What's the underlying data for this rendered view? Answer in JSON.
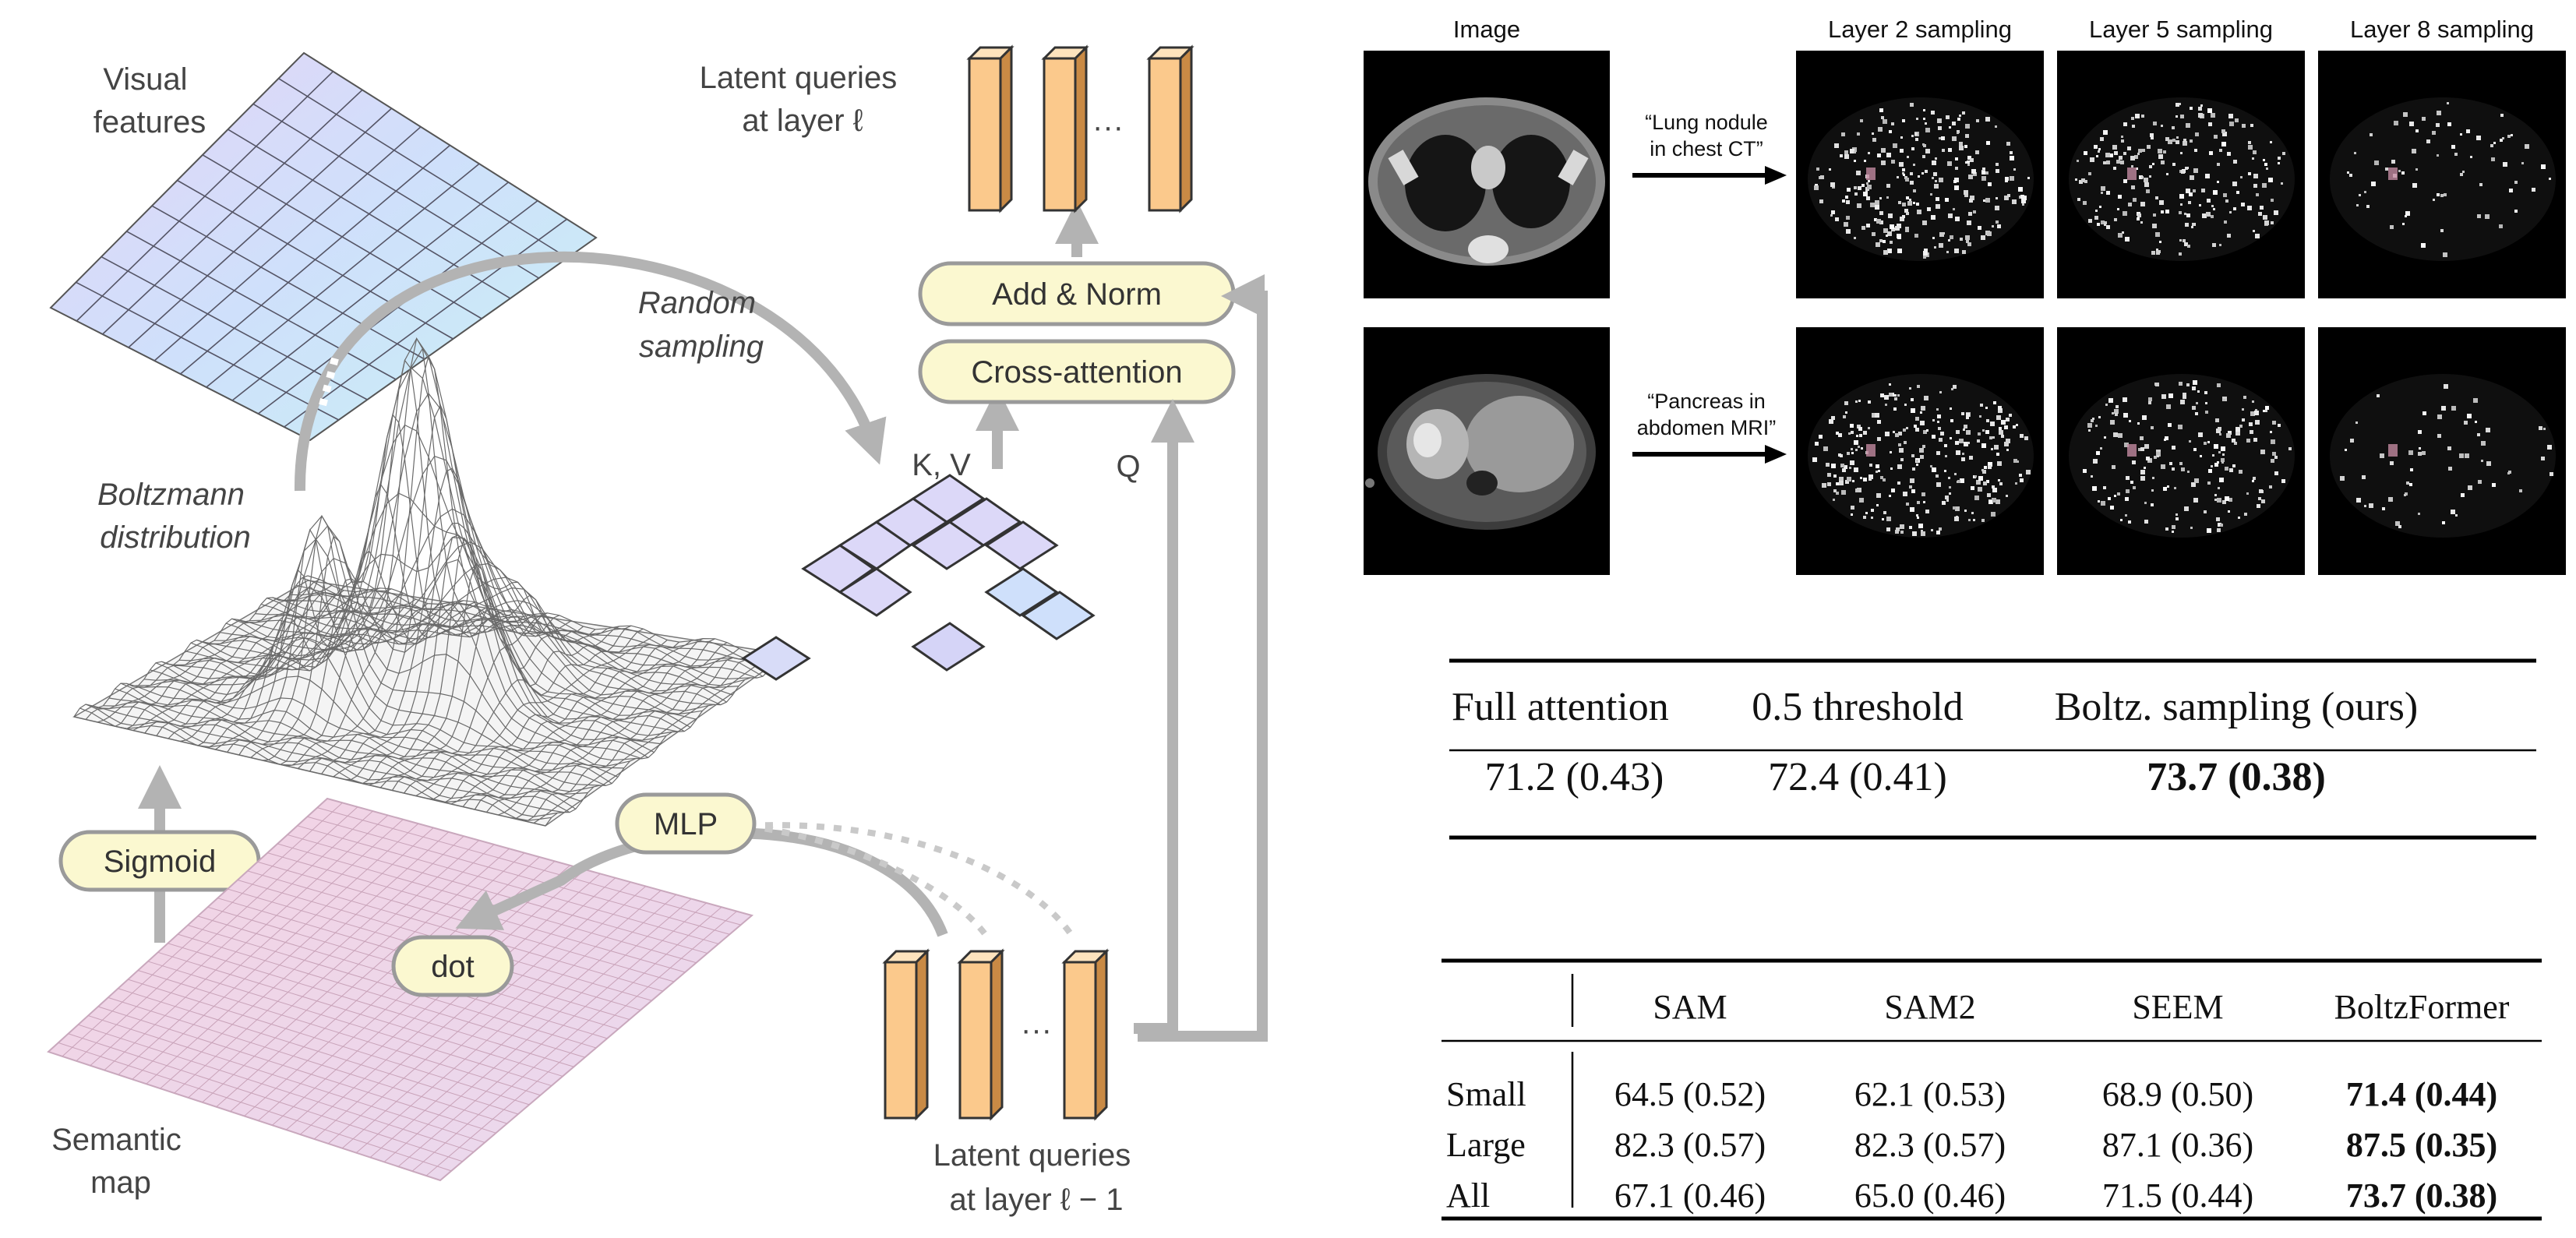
{
  "diagram": {
    "visual_features": [
      "Visual",
      "features"
    ],
    "random_sampling": [
      "Random",
      "sampling"
    ],
    "boltzmann": [
      "Boltzmann",
      "distribution"
    ],
    "semantic_map": [
      "Semantic",
      "map"
    ],
    "latent_top": [
      "Latent queries",
      "at layer ℓ"
    ],
    "latent_bottom": [
      "Latent queries",
      "at layer ℓ − 1"
    ],
    "add_norm": "Add & Norm",
    "cross_attention": "Cross-attention",
    "kv": "K, V",
    "q": "Q",
    "sigmoid": "Sigmoid",
    "mlp": "MLP",
    "dot": "dot",
    "ellipsis": "···",
    "colors": {
      "arrow": "#b3b3b3",
      "pill_fill": "#fbf8d0",
      "pill_stroke": "#9a9a9a",
      "query_bar": "#fbc98c",
      "feature_grid_fill": "#d8dcf8",
      "feature_grid_line": "#555566",
      "semantic_grid_fill": "#f0d8e6"
    }
  },
  "sampling_panels": {
    "titles": [
      "Image",
      "Layer 2 sampling",
      "Layer 5 sampling",
      "Layer 8 sampling"
    ],
    "rows": [
      {
        "prompt": [
          "“Lung nodule",
          "in chest CT”"
        ]
      },
      {
        "prompt": [
          "“Pancreas in",
          "abdomen MRI”"
        ]
      }
    ]
  },
  "table_thresholds": {
    "headers": [
      "Full attention",
      "0.5 threshold",
      "Boltz. sampling (ours)"
    ],
    "row": [
      "71.2 (0.43)",
      "72.4 (0.41)",
      "73.7 (0.38)"
    ]
  },
  "table_methods": {
    "headers": [
      "",
      "SAM",
      "SAM2",
      "SEEM",
      "BoltzFormer"
    ],
    "rows": [
      [
        "Small",
        "64.5 (0.52)",
        "62.1 (0.53)",
        "68.9 (0.50)",
        "71.4 (0.44)"
      ],
      [
        "Large",
        "82.3 (0.57)",
        "82.3 (0.57)",
        "87.1 (0.36)",
        "87.5 (0.35)"
      ],
      [
        "All",
        "67.1 (0.46)",
        "65.0 (0.46)",
        "71.5 (0.44)",
        "73.7 (0.38)"
      ]
    ]
  }
}
